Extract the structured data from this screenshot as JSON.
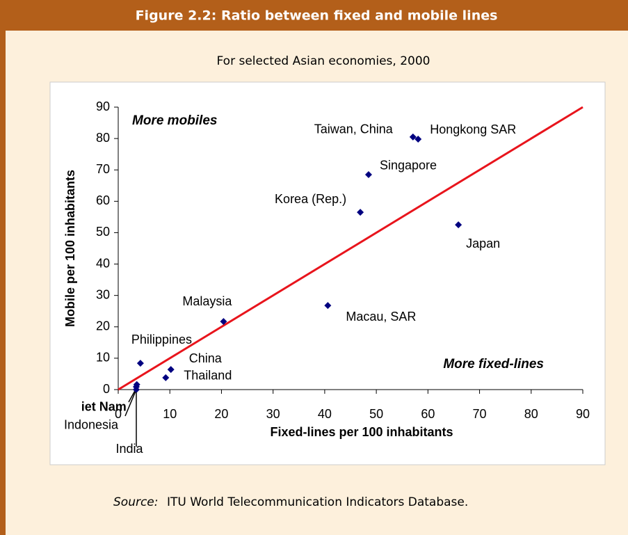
{
  "chart_data": {
    "type": "scatter",
    "title": "Figure 2.2: Ratio between fixed and mobile lines",
    "subtitle": "For selected Asian economies, 2000",
    "x_label": "Fixed-lines per 100 inhabitants",
    "y_label": "Mobile per 100 inhabitants",
    "annotations": [
      "More mobiles",
      "More fixed-lines"
    ],
    "source_label": "Source:",
    "source": "ITU World Telecommunication Indicators Database.",
    "point_labels": [
      "Taiwan, China",
      "Hongkong SAR",
      "Singapore",
      "Korea (Rep.)",
      "Japan",
      "Macau, SAR",
      "Malaysia",
      "Philippines",
      "China",
      "Thailand",
      "iet Nam",
      "Indonesia",
      "India"
    ],
    "x": [
      57.1,
      58.1,
      48.5,
      46.9,
      65.9,
      40.6,
      20.4,
      4.3,
      10.2,
      9.2,
      3.6,
      3.5,
      3.5
    ],
    "values": [
      80.5,
      79.8,
      68.5,
      56.5,
      52.5,
      26.8,
      21.7,
      8.4,
      6.4,
      3.8,
      1.6,
      0.9,
      0
    ],
    "color": "#000080",
    "line_color": "#e8141c",
    "xlim": [
      0,
      90
    ],
    "xticks": [
      0,
      10,
      20,
      30,
      40,
      50,
      60,
      70,
      80,
      90
    ],
    "ylim": [
      0,
      90
    ],
    "yticks": [
      0,
      10,
      20,
      30,
      40,
      50,
      60,
      70,
      80,
      90
    ]
  }
}
